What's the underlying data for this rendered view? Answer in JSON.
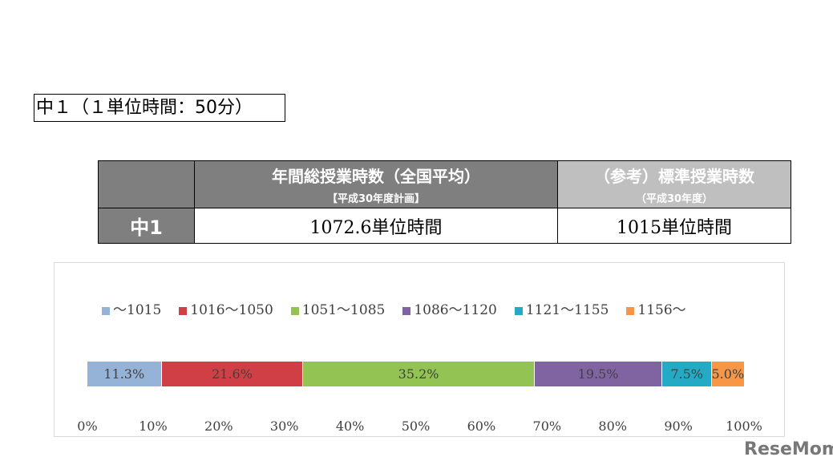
{
  "title": "中１（１単位時間：50分）",
  "table": {
    "h1": "年間総授業時数（全国平均）",
    "h1_sub": "【平成30年度計画】",
    "h2": "（参考）標準授業時数",
    "h2_sub": "（平成30年度）",
    "row_label": "中1",
    "v1": "1072.6単位時間",
    "v2": "1015単位時間"
  },
  "chart_data": {
    "type": "bar",
    "orientation": "horizontal-stacked-100",
    "series": [
      {
        "name": "～1015",
        "value": 11.3,
        "label": "11.3%",
        "color": "#95b3d7"
      },
      {
        "name": "1016～1050",
        "value": 21.6,
        "label": "21.6%",
        "color": "#d13f46"
      },
      {
        "name": "1051～1085",
        "value": 35.2,
        "label": "35.2%",
        "color": "#92c353"
      },
      {
        "name": "1086～1120",
        "value": 19.5,
        "label": "19.5%",
        "color": "#8064a2"
      },
      {
        "name": "1121～1155",
        "value": 7.5,
        "label": "7.5%",
        "color": "#24aac4"
      },
      {
        "name": "1156～",
        "value": 5.0,
        "label": "5.0%",
        "color": "#f79646"
      }
    ],
    "xticks": [
      "0%",
      "10%",
      "20%",
      "30%",
      "40%",
      "50%",
      "60%",
      "70%",
      "80%",
      "90%",
      "100%"
    ],
    "xlim": [
      0,
      100
    ],
    "legend": "top"
  },
  "logo": "ReseMom"
}
